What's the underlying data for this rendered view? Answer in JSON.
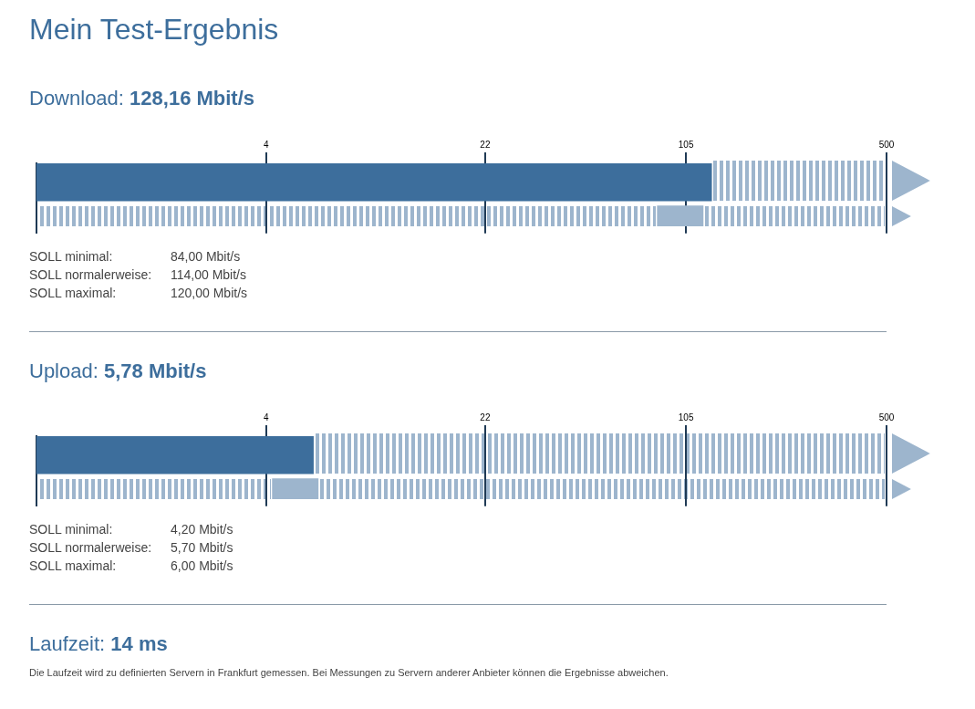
{
  "chart_data": [
    {
      "type": "bar",
      "orientation": "horizontal",
      "title": "Mein Test-Ergebnis",
      "subtitle": "Download: 128,16 Mbit/s",
      "categories": [
        null,
        null
      ],
      "series": [
        {
          "color": "#3d6e9c",
          "values": [
            128.16,
            null
          ]
        },
        {
          "color": "#9db5cd",
          "values": [
            null,
            36
          ],
          "base": [
            null,
            84
          ]
        }
      ],
      "log": "x",
      "xlim": [
        0.67,
        500
      ],
      "xticks": [
        4,
        22,
        105,
        500
      ],
      "grid": "x",
      "annotations": [
        "SOLL minimal: 84,00 Mbit/s",
        "SOLL normalerweise: 114,00 Mbit/s",
        "SOLL maximal: 120,00 Mbit/s"
      ]
    },
    {
      "type": "bar",
      "orientation": "horizontal",
      "subtitle": "Upload: 5,78 Mbit/s",
      "categories": [
        null,
        null
      ],
      "series": [
        {
          "color": "#3d6e9c",
          "values": [
            5.78,
            null
          ]
        },
        {
          "color": "#9db5cd",
          "values": [
            null,
            1.8
          ],
          "base": [
            null,
            4.2
          ]
        }
      ],
      "log": "x",
      "xlim": [
        0.67,
        500
      ],
      "xticks": [
        4,
        22,
        105,
        500
      ],
      "grid": "x",
      "annotations": [
        "SOLL minimal: 4,20 Mbit/s",
        "SOLL normalerweise: 5,70 Mbit/s",
        "SOLL maximal: 6,00 Mbit/s"
      ]
    },
    {
      "type": "other",
      "subtitle": "Laufzeit: 14 ms",
      "annotations": [
        "Die Laufzeit wird zu definierten Servern in Frankfurt gemessen. Bei Messungen zu Servern anderer Anbieter können die Ergebnisse abweichen."
      ]
    }
  ]
}
